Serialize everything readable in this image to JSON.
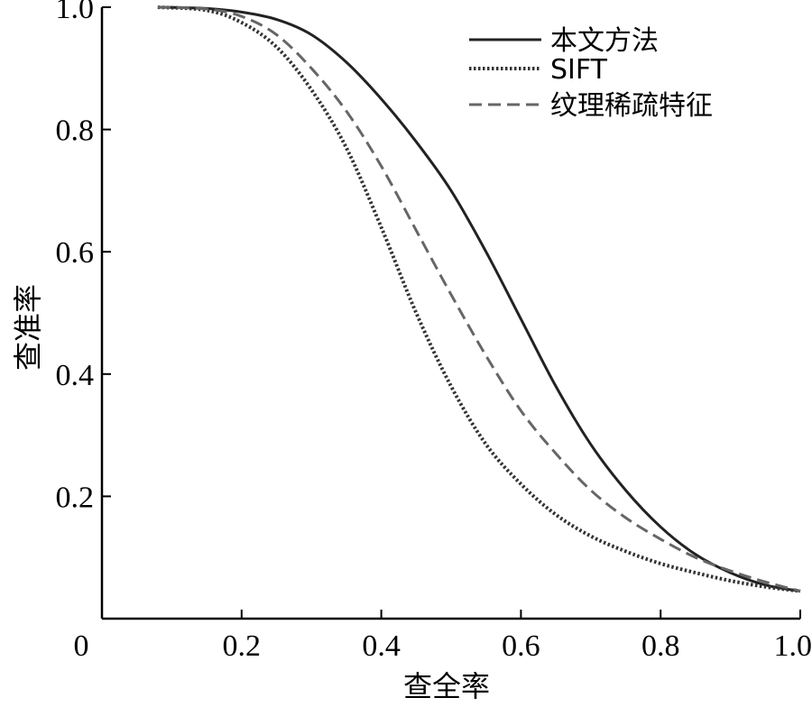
{
  "chart_data": {
    "type": "line",
    "title": "",
    "xlabel": "查全率",
    "ylabel": "查准率",
    "xlim": [
      0,
      1.0
    ],
    "ylim": [
      0,
      1.0
    ],
    "x_ticks": [
      0,
      0.2,
      0.4,
      0.6,
      0.8,
      1.0
    ],
    "x_tick_labels": [
      "0",
      "0.2",
      "0.4",
      "0.6",
      "0.8",
      "1.0"
    ],
    "y_ticks": [
      0.2,
      0.4,
      0.6,
      0.8,
      1.0
    ],
    "y_tick_labels": [
      "0.2",
      "0.4",
      "0.6",
      "0.8",
      "1.0"
    ],
    "grid": false,
    "legend_position": "top-right",
    "series": [
      {
        "name": "本文方法",
        "style": "solid",
        "color": "#222222",
        "x": [
          0.08,
          0.15,
          0.2,
          0.25,
          0.3,
          0.35,
          0.4,
          0.45,
          0.5,
          0.55,
          0.6,
          0.65,
          0.7,
          0.75,
          0.8,
          0.85,
          0.9,
          0.95,
          1.0
        ],
        "y": [
          1.0,
          0.998,
          0.992,
          0.98,
          0.955,
          0.91,
          0.85,
          0.78,
          0.7,
          0.6,
          0.49,
          0.38,
          0.285,
          0.21,
          0.15,
          0.105,
          0.075,
          0.055,
          0.045
        ]
      },
      {
        "name": "SIFT",
        "style": "dotted",
        "color": "#333333",
        "x": [
          0.08,
          0.15,
          0.2,
          0.25,
          0.3,
          0.35,
          0.4,
          0.45,
          0.5,
          0.55,
          0.6,
          0.65,
          0.7,
          0.75,
          0.8,
          0.85,
          0.9,
          0.95,
          1.0
        ],
        "y": [
          1.0,
          0.995,
          0.975,
          0.935,
          0.865,
          0.77,
          0.64,
          0.5,
          0.38,
          0.285,
          0.22,
          0.17,
          0.135,
          0.11,
          0.09,
          0.075,
          0.062,
          0.052,
          0.045
        ]
      },
      {
        "name": "纹理稀疏特征",
        "style": "dashed",
        "color": "#666666",
        "x": [
          0.08,
          0.15,
          0.2,
          0.25,
          0.3,
          0.35,
          0.4,
          0.45,
          0.5,
          0.55,
          0.6,
          0.65,
          0.7,
          0.75,
          0.8,
          0.85,
          0.9,
          0.95,
          1.0
        ],
        "y": [
          1.0,
          0.997,
          0.985,
          0.955,
          0.9,
          0.83,
          0.74,
          0.635,
          0.53,
          0.43,
          0.34,
          0.27,
          0.21,
          0.165,
          0.13,
          0.1,
          0.078,
          0.06,
          0.045
        ]
      }
    ]
  }
}
